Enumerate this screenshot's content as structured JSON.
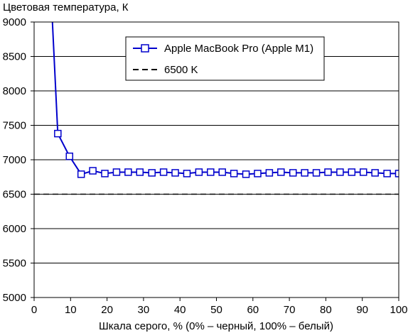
{
  "chart_data": {
    "type": "line",
    "title": "",
    "ylabel": "Цветовая температура, К",
    "xlabel": "Шкала серого, % (0% – черный, 100% – белый)",
    "xlim": [
      0,
      100
    ],
    "ylim": [
      5000,
      9000
    ],
    "x_ticks": [
      "0",
      "10",
      "20",
      "30",
      "40",
      "50",
      "60",
      "70",
      "80",
      "90",
      "100"
    ],
    "y_ticks": [
      "5000",
      "5500",
      "6000",
      "6500",
      "7000",
      "7500",
      "8000",
      "8500",
      "9000"
    ],
    "grid": "horizontal",
    "legend_position": "top-right",
    "series": [
      {
        "name": "Apple MacBook Pro (Apple M1)",
        "color": "#0000cc",
        "marker": "square",
        "x": [
          3.2,
          6.5,
          9.7,
          12.9,
          16.1,
          19.4,
          22.6,
          25.8,
          29.0,
          32.3,
          35.5,
          38.7,
          41.9,
          45.2,
          48.4,
          51.6,
          54.8,
          58.1,
          61.3,
          64.5,
          67.7,
          71.0,
          74.2,
          77.4,
          80.6,
          83.9,
          87.1,
          90.3,
          93.5,
          96.8,
          100.0
        ],
        "y": [
          11000,
          7380,
          7050,
          6790,
          6840,
          6800,
          6820,
          6820,
          6820,
          6810,
          6820,
          6810,
          6800,
          6820,
          6820,
          6820,
          6800,
          6790,
          6800,
          6810,
          6820,
          6810,
          6810,
          6810,
          6820,
          6820,
          6820,
          6820,
          6810,
          6800,
          6800
        ]
      },
      {
        "name": "6500 K",
        "color": "#000000",
        "style": "dashed",
        "x": [
          0,
          100
        ],
        "y": [
          6500,
          6500
        ]
      }
    ]
  }
}
